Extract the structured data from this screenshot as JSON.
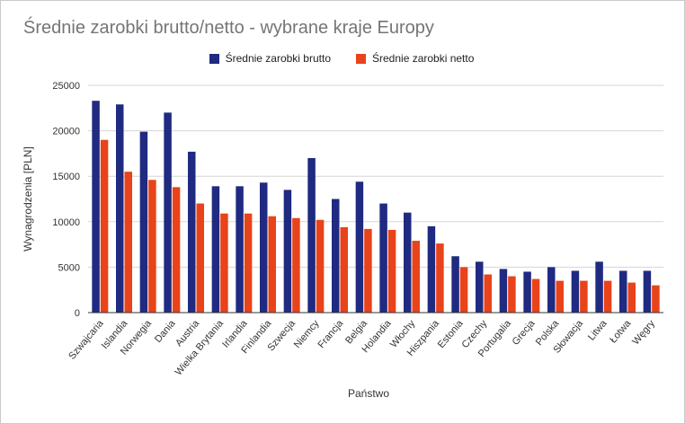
{
  "chart_data": {
    "type": "bar",
    "title": "Średnie zarobki brutto/netto - wybrane kraje Europy",
    "xlabel": "Państwo",
    "ylabel": "Wynagrodzenia [PLN]",
    "ylim": [
      0,
      25000
    ],
    "yticks": [
      "0",
      "5000",
      "10000",
      "15000",
      "20000",
      "25000"
    ],
    "grid": true,
    "legend_position": "top",
    "categories": [
      "Szwajcaria",
      "Islandia",
      "Norwegia",
      "Dania",
      "Austria",
      "Wielka Brytania",
      "Irlandia",
      "Finlandia",
      "Szwecja",
      "Niemcy",
      "Francja",
      "Belgia",
      "Holandia",
      "Włochy",
      "Hiszpania",
      "Estonia",
      "Czechy",
      "Portugalia",
      "Grecja",
      "Polska",
      "Słowacja",
      "Litwa",
      "Łotwa",
      "Węgry"
    ],
    "series": [
      {
        "name": "Średnie zarobki brutto",
        "color": "#1f2a80",
        "values": [
          23300,
          22900,
          19900,
          22000,
          17700,
          13900,
          13900,
          14300,
          13500,
          17000,
          12500,
          14400,
          12000,
          11000,
          9500,
          6200,
          5600,
          4800,
          4500,
          5000,
          4600,
          5600,
          4600,
          4600
        ]
      },
      {
        "name": "Średnie zarobki netto",
        "color": "#e8431a",
        "values": [
          19000,
          15500,
          14600,
          13800,
          12000,
          10900,
          10900,
          10600,
          10400,
          10200,
          9400,
          9200,
          9100,
          7900,
          7600,
          5000,
          4200,
          4000,
          3700,
          3500,
          3500,
          3500,
          3300,
          3000
        ]
      }
    ]
  }
}
